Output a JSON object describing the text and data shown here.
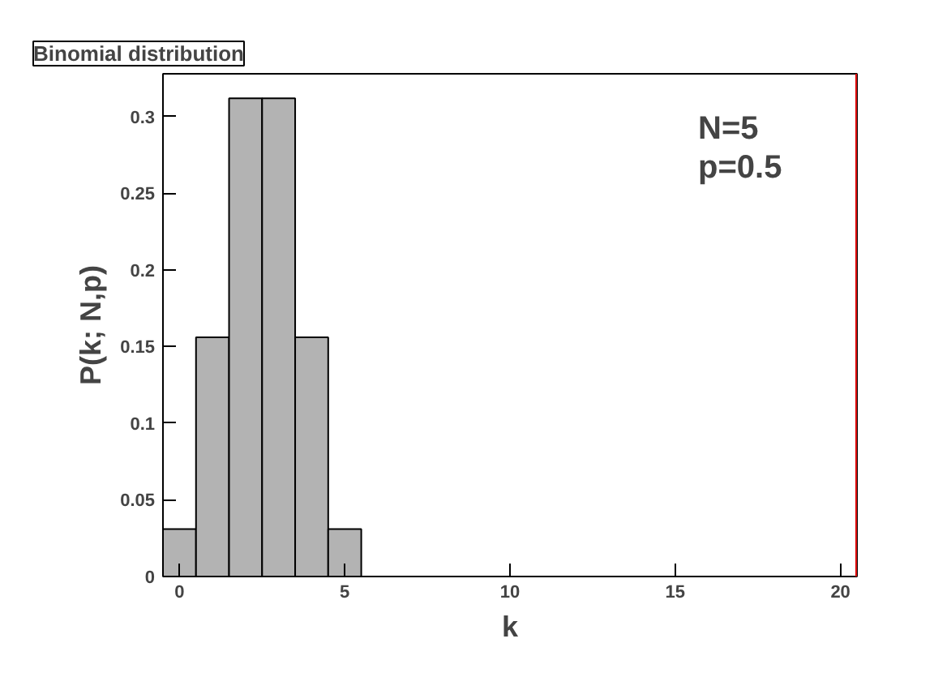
{
  "chart_data": {
    "type": "histogram",
    "title": "Binomial distribution",
    "xlabel": "k",
    "ylabel": "P(k; N,p)",
    "bins": [
      -0.5,
      0.5,
      1.5,
      2.5,
      3.5,
      4.5,
      5.5
    ],
    "values": [
      0.031,
      0.156,
      0.312,
      0.312,
      0.156,
      0.031
    ],
    "color": "#b3b3b3",
    "xlim": [
      -0.5,
      20.5
    ],
    "xticks": [
      0,
      5,
      10,
      15,
      20
    ],
    "ylim": [
      0,
      0.328
    ],
    "yticks": [
      0,
      0.05,
      0.1,
      0.15,
      0.2,
      0.25,
      0.3
    ],
    "annotations": [
      "N=5",
      "p=0.5"
    ],
    "ref_lines": [
      {
        "axis": "x",
        "value": 20.5,
        "color": "#e00000"
      }
    ],
    "grid": false
  }
}
